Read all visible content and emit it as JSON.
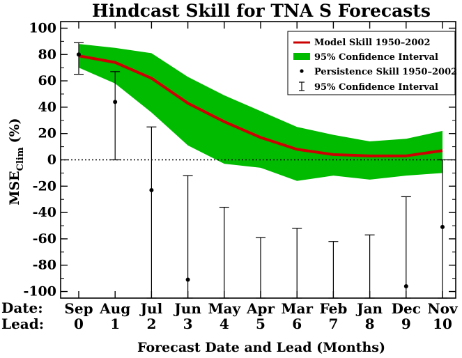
{
  "chart_data": {
    "type": "line",
    "title": "Hindcast Skill for TNA S Forecasts",
    "xlabel": "Forecast Date and Lead (Months)",
    "ylabel": "MSE",
    "ylabel_sub": "Clim",
    "ylabel_unit": "(%)",
    "ylim": [
      -105,
      105
    ],
    "yticks": [
      -100,
      -80,
      -60,
      -40,
      -20,
      0,
      20,
      40,
      60,
      80,
      100
    ],
    "row_labels": {
      "date": "Date:",
      "lead": "Lead:"
    },
    "categories": [
      "Sep",
      "Aug",
      "Jul",
      "Jun",
      "May",
      "Apr",
      "Mar",
      "Feb",
      "Jan",
      "Dec",
      "Nov"
    ],
    "leads": [
      "0",
      "1",
      "2",
      "3",
      "4",
      "5",
      "6",
      "7",
      "8",
      "9",
      "10"
    ],
    "reference_line": 0,
    "series": [
      {
        "name": "Model Skill 1950–2002",
        "color": "#cc0000",
        "values": [
          79,
          74,
          62,
          43,
          29,
          17,
          8,
          4,
          3,
          3,
          7
        ]
      },
      {
        "name": "95% Confidence Interval",
        "kind": "band",
        "color": "#00bb00",
        "upper": [
          88,
          85,
          81,
          63,
          49,
          37,
          25,
          19,
          14,
          16,
          22
        ],
        "lower": [
          70,
          58,
          36,
          11,
          -3,
          -6,
          -16,
          -12,
          -15,
          -12,
          -10
        ]
      },
      {
        "name": "Persistence Skill 1950–2002",
        "kind": "points",
        "color": "#000000",
        "values": [
          80,
          44,
          -23,
          -91,
          null,
          null,
          null,
          null,
          null,
          -96,
          -51
        ]
      },
      {
        "name": "95% Confidence Interval",
        "kind": "errorbar",
        "color": "#000000",
        "upper": [
          89,
          67,
          25,
          -12,
          -36,
          -59,
          -52,
          -62,
          -57,
          -28,
          0
        ],
        "lower": [
          65,
          0,
          -105,
          -105,
          -105,
          -105,
          -105,
          -105,
          -105,
          -105,
          -105
        ]
      }
    ],
    "legend_position": "top-right"
  }
}
